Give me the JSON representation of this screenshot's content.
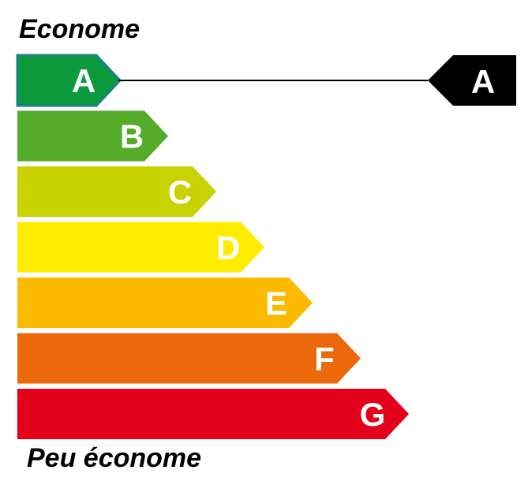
{
  "scale": {
    "top_label": "Econome",
    "bottom_label": "Peu économe",
    "classes": [
      {
        "letter": "A",
        "color": "#0a9a3c"
      },
      {
        "letter": "B",
        "color": "#55ab2a"
      },
      {
        "letter": "C",
        "color": "#c8d200"
      },
      {
        "letter": "D",
        "color": "#ffed00"
      },
      {
        "letter": "E",
        "color": "#fbba00"
      },
      {
        "letter": "F",
        "color": "#eb690b"
      },
      {
        "letter": "G",
        "color": "#e2001a"
      }
    ],
    "highlighted_class_border_color": "#1b7f8c"
  },
  "rating": {
    "letter": "A",
    "color": "#000000"
  }
}
